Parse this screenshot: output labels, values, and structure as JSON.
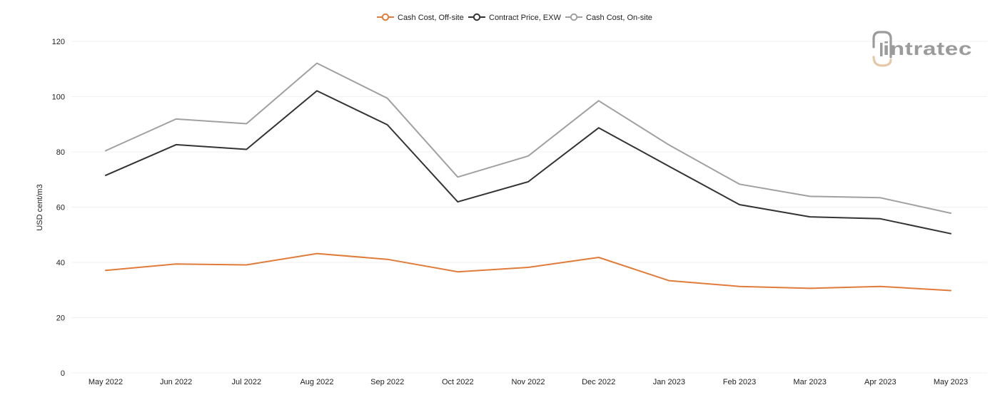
{
  "chart_data": {
    "type": "line",
    "categories": [
      "May 2022",
      "Jun 2022",
      "Jul 2022",
      "Aug 2022",
      "Sep 2022",
      "Oct 2022",
      "Nov 2022",
      "Dec 2022",
      "Jan 2023",
      "Feb 2023",
      "Mar 2023",
      "Apr 2023",
      "May 2023"
    ],
    "series": [
      {
        "name": "Cash Cost, Off-site",
        "color": "#e07b39",
        "values": [
          37.1,
          39.4,
          39.1,
          43.2,
          41.1,
          36.6,
          38.2,
          41.8,
          33.4,
          31.3,
          30.6,
          31.3,
          29.8
        ]
      },
      {
        "name": "Contract Price, EXW",
        "color": "#333333",
        "values": [
          71.5,
          82.6,
          80.9,
          102.1,
          89.8,
          61.9,
          69.2,
          88.7,
          74.8,
          60.9,
          56.5,
          55.8,
          50.4
        ]
      },
      {
        "name": "Cash Cost, On-site",
        "color": "#a0a0a0",
        "values": [
          80.4,
          91.9,
          90.2,
          112.1,
          99.4,
          70.9,
          78.5,
          98.5,
          82.5,
          68.3,
          63.9,
          63.4,
          57.8
        ]
      }
    ],
    "ylabel": "USD cent/m3",
    "xlabel": "",
    "ylim": [
      0,
      120
    ],
    "yticks": [
      0,
      20,
      40,
      60,
      80,
      100,
      120
    ],
    "grid": true,
    "legend_position": "top-center"
  },
  "logo": {
    "text": "intratec",
    "alt_text": "intratec logo"
  }
}
